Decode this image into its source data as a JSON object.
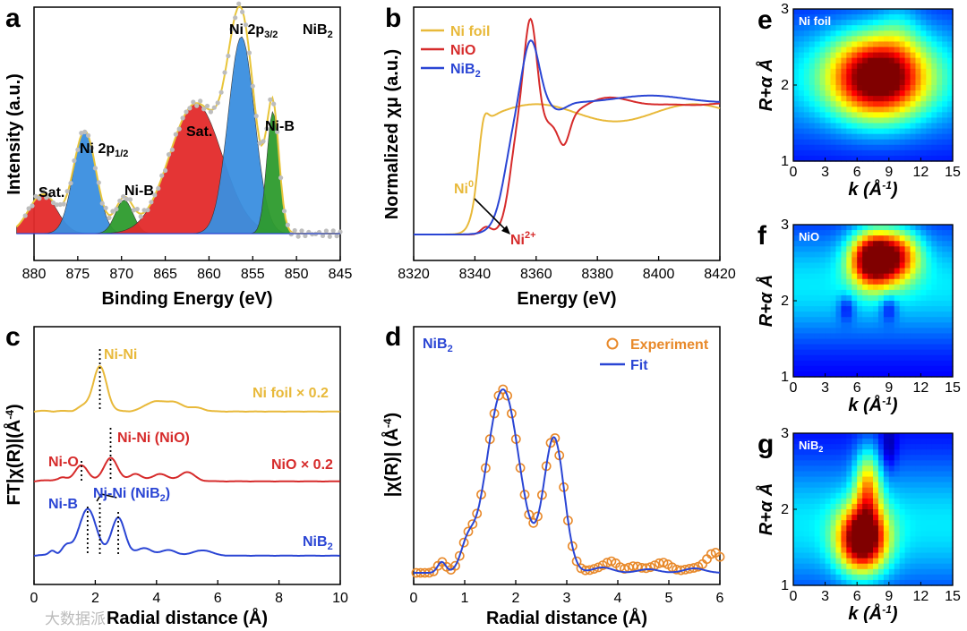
{
  "chart_data": [
    {
      "panel": "a",
      "type": "area",
      "title": "NiB2",
      "xlabel": "Binding Energy (eV)",
      "ylabel": "Intensity (a.u.)",
      "xlim": [
        880,
        845
      ],
      "x_ticks": [
        "880",
        "875",
        "870",
        "865",
        "860",
        "855",
        "850",
        "845"
      ],
      "peaks": [
        {
          "label": "Sat.",
          "center": 879,
          "height": 0.2,
          "color": "#e32b2b"
        },
        {
          "label": "Ni 2p1/2",
          "center": 874.2,
          "height": 0.52,
          "color": "#3a8fe0"
        },
        {
          "label": "Ni-B",
          "center": 869.7,
          "height": 0.17,
          "color": "#2e9b2e"
        },
        {
          "label": "Sat.",
          "center": 861.5,
          "height": 0.66,
          "color": "#e32b2b"
        },
        {
          "label": "Ni 2p3/2",
          "center": 856.3,
          "height": 1.0,
          "color": "#3a8fe0"
        },
        {
          "label": "Ni-B",
          "center": 852.7,
          "height": 0.62,
          "color": "#2e9b2e"
        }
      ],
      "annotations": [
        "Sat.",
        "Ni 2p1/2",
        "Ni-B",
        "Sat.",
        "Ni 2p3/2",
        "Ni-B",
        "NiB2"
      ]
    },
    {
      "panel": "b",
      "type": "line",
      "xlabel": "Energy (eV)",
      "ylabel": "Normalized χμ (a.u.)",
      "xlim": [
        8310,
        8420
      ],
      "x_ticks": [
        "8320",
        "8340",
        "8360",
        "8380",
        "8400",
        "8420"
      ],
      "series": [
        {
          "name": "Ni foil",
          "color": "#e8b93a"
        },
        {
          "name": "NiO",
          "color": "#d62b2b"
        },
        {
          "name": "NiB2",
          "color": "#2a45d4"
        }
      ],
      "annotations": [
        "Ni0",
        "Ni2+"
      ]
    },
    {
      "panel": "c",
      "type": "line",
      "xlabel": "Radial distance (Å)",
      "ylabel": "FT|χ(R)|(Å-4)",
      "xlim": [
        0,
        10
      ],
      "x_ticks": [
        "0",
        "2",
        "4",
        "6",
        "8",
        "10"
      ],
      "series": [
        {
          "name": "Ni foil × 0.2",
          "color": "#e8b93a",
          "peak_R": [
            2.15
          ]
        },
        {
          "name": "NiO × 0.2",
          "color": "#d62b2b",
          "peak_R": [
            1.6,
            2.5
          ]
        },
        {
          "name": "NiB2",
          "color": "#2a45d4",
          "peak_R": [
            1.75,
            2.75
          ]
        }
      ],
      "annotations": [
        "Ni-Ni",
        "Ni-O",
        "Ni-Ni (NiO)",
        "Ni-B",
        "Ni-Ni (NiB2)"
      ]
    },
    {
      "panel": "d",
      "type": "line",
      "title": "NiB2",
      "xlabel": "Radial distance (Å)",
      "ylabel": "|χ(R)| (Å-4)",
      "xlim": [
        0,
        6
      ],
      "x_ticks": [
        "0",
        "1",
        "2",
        "3",
        "4",
        "5",
        "6"
      ],
      "series": [
        {
          "name": "Experiment",
          "color": "#e8892a",
          "marker": "open-circle"
        },
        {
          "name": "Fit",
          "color": "#2a45d4"
        }
      ],
      "peak_R": [
        1.75,
        2.75
      ]
    },
    {
      "panel": "e",
      "type": "heatmap",
      "label": "Ni foil",
      "xlabel": "k (Å-1)",
      "ylabel": "R+α Å",
      "x_ticks": [
        "0",
        "3",
        "6",
        "9",
        "12",
        "15"
      ],
      "y_ticks": [
        "1",
        "2",
        "3"
      ],
      "max_k": 8,
      "max_R": 2.1
    },
    {
      "panel": "f",
      "type": "heatmap",
      "label": "NiO",
      "xlabel": "k (Å-1)",
      "ylabel": "R+α Å",
      "x_ticks": [
        "0",
        "3",
        "6",
        "9",
        "12",
        "15"
      ],
      "y_ticks": [
        "1",
        "2",
        "3"
      ],
      "max_k": 7.5,
      "max_R": 2.5
    },
    {
      "panel": "g",
      "type": "heatmap",
      "label": "NiB2",
      "xlabel": "k (Å-1)",
      "ylabel": "R+α Å",
      "x_ticks": [
        "0",
        "3",
        "6",
        "9",
        "12",
        "15"
      ],
      "y_ticks": [
        "1",
        "2",
        "3"
      ],
      "max_k": 6.5,
      "max_R": 1.6
    }
  ],
  "panels": {
    "a": {
      "letter": "a"
    },
    "b": {
      "letter": "b"
    },
    "c": {
      "letter": "c"
    },
    "d": {
      "letter": "d"
    },
    "e": {
      "letter": "e"
    },
    "f": {
      "letter": "f"
    },
    "g": {
      "letter": "g"
    }
  },
  "watermark": "大数据派"
}
